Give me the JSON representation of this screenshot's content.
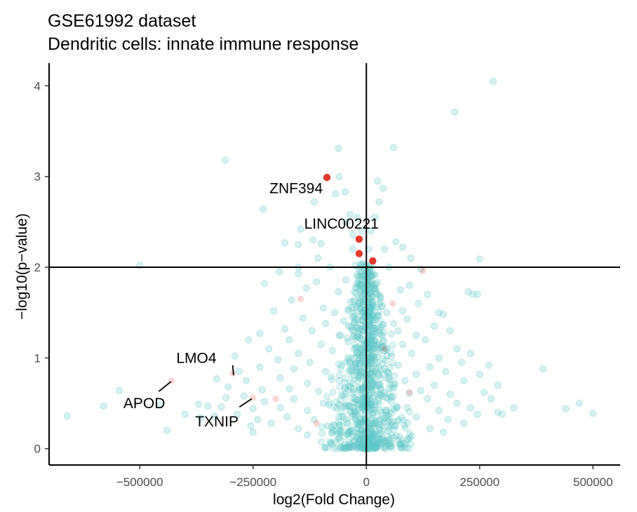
{
  "chart_data": {
    "type": "scatter",
    "title": "GSE61992 dataset",
    "subtitle": "Dendritic cells: innate immune response",
    "xlabel": "log2(Fold Change)",
    "ylabel": "−log10(p−value)",
    "xlim": [
      -700000,
      560000
    ],
    "ylim": [
      -0.18,
      4.25
    ],
    "x_ticks": [
      -500000,
      -250000,
      0,
      250000,
      500000
    ],
    "x_tick_labels": [
      "−500000",
      "−250000",
      "0",
      "250000",
      "500000"
    ],
    "y_ticks": [
      0,
      1,
      2,
      3,
      4
    ],
    "y_tick_labels": [
      "0",
      "1",
      "2",
      "3",
      "4"
    ],
    "reference_lines": {
      "x": 0,
      "y": 2
    },
    "grid": false,
    "legend": "none",
    "colors": {
      "background_points": "#5fc8c8",
      "highlight_points": "#e8392b",
      "axis": "#000000"
    },
    "points_highlighted_significant": [
      {
        "gene": "ZNF394",
        "x": -87000,
        "y": 2.99
      },
      {
        "gene": "LINC00221",
        "x": -16000,
        "y": 2.31
      },
      {
        "gene": "",
        "x": -16000,
        "y": 2.15
      },
      {
        "gene": "",
        "x": 14000,
        "y": 2.07
      }
    ],
    "points_highlighted_faint": [
      {
        "gene": "APOD",
        "x": -430000,
        "y": 0.75
      },
      {
        "gene": "LMO4",
        "x": -295000,
        "y": 0.83
      },
      {
        "gene": "TXNIP",
        "x": -250000,
        "y": 0.56
      },
      {
        "gene": "",
        "x": -200000,
        "y": 0.55
      },
      {
        "gene": "",
        "x": -145000,
        "y": 1.65
      },
      {
        "gene": "",
        "x": 125000,
        "y": 1.96
      },
      {
        "gene": "",
        "x": 58000,
        "y": 1.6
      },
      {
        "gene": "",
        "x": 95000,
        "y": 0.62
      },
      {
        "gene": "",
        "x": -110000,
        "y": 0.28
      },
      {
        "gene": "",
        "x": 40000,
        "y": 1.1
      }
    ],
    "points_background": [
      [
        280000,
        4.05
      ],
      [
        195000,
        3.71
      ],
      [
        -62000,
        3.31
      ],
      [
        60000,
        3.32
      ],
      [
        -312000,
        3.18
      ],
      [
        -60000,
        3.0
      ],
      [
        -47000,
        2.83
      ],
      [
        -68000,
        2.81
      ],
      [
        25000,
        2.95
      ],
      [
        37000,
        2.87
      ],
      [
        28000,
        2.72
      ],
      [
        -115000,
        2.72
      ],
      [
        -228000,
        2.64
      ],
      [
        -44000,
        2.5
      ],
      [
        -36000,
        2.58
      ],
      [
        -20000,
        2.55
      ],
      [
        -10000,
        2.4
      ],
      [
        -30000,
        2.36
      ],
      [
        10000,
        2.4
      ],
      [
        19000,
        2.55
      ],
      [
        -100000,
        2.26
      ],
      [
        -118000,
        2.3
      ],
      [
        -145000,
        2.42
      ],
      [
        -150000,
        2.25
      ],
      [
        -107000,
        2.1
      ],
      [
        -180000,
        2.27
      ],
      [
        -30000,
        2.2
      ],
      [
        5000,
        2.2
      ],
      [
        40000,
        2.2
      ],
      [
        65000,
        2.28
      ],
      [
        80000,
        2.22
      ],
      [
        98000,
        2.1
      ],
      [
        250000,
        2.09
      ],
      [
        -500000,
        2.02
      ],
      [
        -150000,
        2.0
      ],
      [
        -80000,
        2.0
      ],
      [
        -25000,
        2.02
      ],
      [
        50000,
        2.0
      ],
      [
        120000,
        1.98
      ],
      [
        -192000,
        1.95
      ],
      [
        -150000,
        1.93
      ],
      [
        -225000,
        1.82
      ],
      [
        -132000,
        1.77
      ],
      [
        -110000,
        1.84
      ],
      [
        -62000,
        1.73
      ],
      [
        -45000,
        1.86
      ],
      [
        -10000,
        1.9
      ],
      [
        25000,
        1.83
      ],
      [
        75000,
        1.75
      ],
      [
        95000,
        1.8
      ],
      [
        135000,
        1.7
      ],
      [
        115000,
        1.6
      ],
      [
        225000,
        1.73
      ],
      [
        235000,
        1.7
      ],
      [
        245000,
        1.7
      ],
      [
        -165000,
        1.64
      ],
      [
        -95000,
        1.55
      ],
      [
        -70000,
        1.5
      ],
      [
        -35000,
        1.62
      ],
      [
        10000,
        1.55
      ],
      [
        45000,
        1.5
      ],
      [
        80000,
        1.52
      ],
      [
        160000,
        1.5
      ],
      [
        170000,
        1.48
      ],
      [
        -205000,
        1.52
      ],
      [
        -140000,
        1.44
      ],
      [
        -90000,
        1.38
      ],
      [
        -50000,
        1.41
      ],
      [
        20000,
        1.42
      ],
      [
        60000,
        1.38
      ],
      [
        90000,
        1.43
      ],
      [
        150000,
        1.35
      ],
      [
        -235000,
        1.27
      ],
      [
        -180000,
        1.32
      ],
      [
        -120000,
        1.3
      ],
      [
        -60000,
        1.25
      ],
      [
        -30000,
        1.3
      ],
      [
        30000,
        1.27
      ],
      [
        70000,
        1.3
      ],
      [
        110000,
        1.25
      ],
      [
        185000,
        1.3
      ],
      [
        -260000,
        1.2
      ],
      [
        -170000,
        1.2
      ],
      [
        -100000,
        1.15
      ],
      [
        -40000,
        1.18
      ],
      [
        35000,
        1.12
      ],
      [
        80000,
        1.15
      ],
      [
        130000,
        1.2
      ],
      [
        200000,
        1.1
      ],
      [
        -215000,
        1.1
      ],
      [
        -150000,
        1.05
      ],
      [
        -75000,
        1.08
      ],
      [
        -20000,
        1.05
      ],
      [
        55000,
        1.02
      ],
      [
        100000,
        1.05
      ],
      [
        160000,
        1.0
      ],
      [
        230000,
        1.05
      ],
      [
        -290000,
        1.02
      ],
      [
        -195000,
        0.98
      ],
      [
        -125000,
        0.95
      ],
      [
        -55000,
        0.92
      ],
      [
        25000,
        0.95
      ],
      [
        70000,
        0.92
      ],
      [
        140000,
        0.9
      ],
      [
        210000,
        0.95
      ],
      [
        270000,
        0.92
      ],
      [
        -280000,
        0.85
      ],
      [
        -235000,
        0.9
      ],
      [
        -160000,
        0.88
      ],
      [
        -90000,
        0.85
      ],
      [
        -15000,
        0.82
      ],
      [
        45000,
        0.85
      ],
      [
        110000,
        0.82
      ],
      [
        175000,
        0.85
      ],
      [
        250000,
        0.82
      ],
      [
        390000,
        0.88
      ],
      [
        -330000,
        0.77
      ],
      [
        -265000,
        0.75
      ],
      [
        -190000,
        0.78
      ],
      [
        -130000,
        0.72
      ],
      [
        -60000,
        0.75
      ],
      [
        15000,
        0.72
      ],
      [
        85000,
        0.75
      ],
      [
        150000,
        0.7
      ],
      [
        215000,
        0.75
      ],
      [
        290000,
        0.7
      ],
      [
        -305000,
        0.68
      ],
      [
        -230000,
        0.65
      ],
      [
        -170000,
        0.66
      ],
      [
        -105000,
        0.63
      ],
      [
        -40000,
        0.65
      ],
      [
        40000,
        0.62
      ],
      [
        120000,
        0.64
      ],
      [
        185000,
        0.6
      ],
      [
        260000,
        0.62
      ],
      [
        -545000,
        0.64
      ],
      [
        -310000,
        0.56
      ],
      [
        -270000,
        0.58
      ],
      [
        -225000,
        0.52
      ],
      [
        -160000,
        0.55
      ],
      [
        -95000,
        0.5
      ],
      [
        -25000,
        0.55
      ],
      [
        55000,
        0.52
      ],
      [
        135000,
        0.55
      ],
      [
        200000,
        0.5
      ],
      [
        275000,
        0.55
      ],
      [
        -580000,
        0.47
      ],
      [
        -370000,
        0.49
      ],
      [
        -350000,
        0.47
      ],
      [
        -320000,
        0.46
      ],
      [
        -250000,
        0.44
      ],
      [
        -190000,
        0.45
      ],
      [
        -130000,
        0.42
      ],
      [
        -65000,
        0.45
      ],
      [
        10000,
        0.43
      ],
      [
        90000,
        0.45
      ],
      [
        160000,
        0.42
      ],
      [
        230000,
        0.45
      ],
      [
        325000,
        0.45
      ],
      [
        440000,
        0.44
      ],
      [
        470000,
        0.5
      ],
      [
        -455000,
        0.48
      ],
      [
        -400000,
        0.38
      ],
      [
        -365000,
        0.34
      ],
      [
        -335000,
        0.36
      ],
      [
        -285000,
        0.38
      ],
      [
        -240000,
        0.32
      ],
      [
        -175000,
        0.35
      ],
      [
        -115000,
        0.32
      ],
      [
        -50000,
        0.35
      ],
      [
        30000,
        0.32
      ],
      [
        110000,
        0.35
      ],
      [
        180000,
        0.32
      ],
      [
        245000,
        0.38
      ],
      [
        290000,
        0.4
      ],
      [
        300000,
        0.38
      ],
      [
        500000,
        0.39
      ],
      [
        -660000,
        0.36
      ],
      [
        -255000,
        0.25
      ],
      [
        -210000,
        0.28
      ],
      [
        -150000,
        0.22
      ],
      [
        -85000,
        0.25
      ],
      [
        -20000,
        0.22
      ],
      [
        65000,
        0.25
      ],
      [
        140000,
        0.22
      ],
      [
        215000,
        0.28
      ],
      [
        -250000,
        0.18
      ],
      [
        -130000,
        0.15
      ],
      [
        -60000,
        0.12
      ],
      [
        15000,
        0.15
      ],
      [
        95000,
        0.12
      ],
      [
        170000,
        0.18
      ],
      [
        -440000,
        0.2
      ],
      [
        -35000,
        0.05
      ],
      [
        25000,
        0.04
      ],
      [
        -5000,
        0.02
      ],
      [
        5000,
        0.0
      ],
      [
        -12000,
        0.1
      ],
      [
        12000,
        0.08
      ],
      [
        -20000,
        0.3
      ],
      [
        20000,
        0.28
      ],
      [
        -8000,
        0.45
      ],
      [
        8000,
        0.5
      ],
      [
        -15000,
        0.65
      ],
      [
        15000,
        0.7
      ],
      [
        -5000,
        0.9
      ],
      [
        6000,
        0.95
      ],
      [
        -12000,
        1.1
      ],
      [
        12000,
        1.15
      ],
      [
        -4000,
        1.3
      ],
      [
        4000,
        1.35
      ],
      [
        -9000,
        1.5
      ],
      [
        9000,
        1.55
      ],
      [
        -3000,
        1.7
      ],
      [
        3000,
        1.75
      ],
      [
        -7000,
        1.9
      ],
      [
        7000,
        1.95
      ]
    ],
    "labels": [
      {
        "text": "ZNF394",
        "x": -155000,
        "y": 2.87,
        "anchor": "middle"
      },
      {
        "text": "LINC00221",
        "x": -55000,
        "y": 2.48,
        "anchor": "middle"
      },
      {
        "text": "LMO4",
        "x": -375000,
        "y": 1.0,
        "anchor": "middle"
      },
      {
        "text": "APOD",
        "x": -490000,
        "y": 0.5,
        "anchor": "middle"
      },
      {
        "text": "TXNIP",
        "x": -330000,
        "y": 0.3,
        "anchor": "middle"
      }
    ],
    "label_leaders": [
      {
        "gene": "LMO4",
        "x1": -295000,
        "y1": 0.92,
        "x2": -293000,
        "y2": 0.81
      },
      {
        "gene": "APOD",
        "x1": -458000,
        "y1": 0.63,
        "x2": -431000,
        "y2": 0.74
      },
      {
        "gene": "TXNIP",
        "x1": -280000,
        "y1": 0.46,
        "x2": -253000,
        "y2": 0.55
      }
    ]
  }
}
